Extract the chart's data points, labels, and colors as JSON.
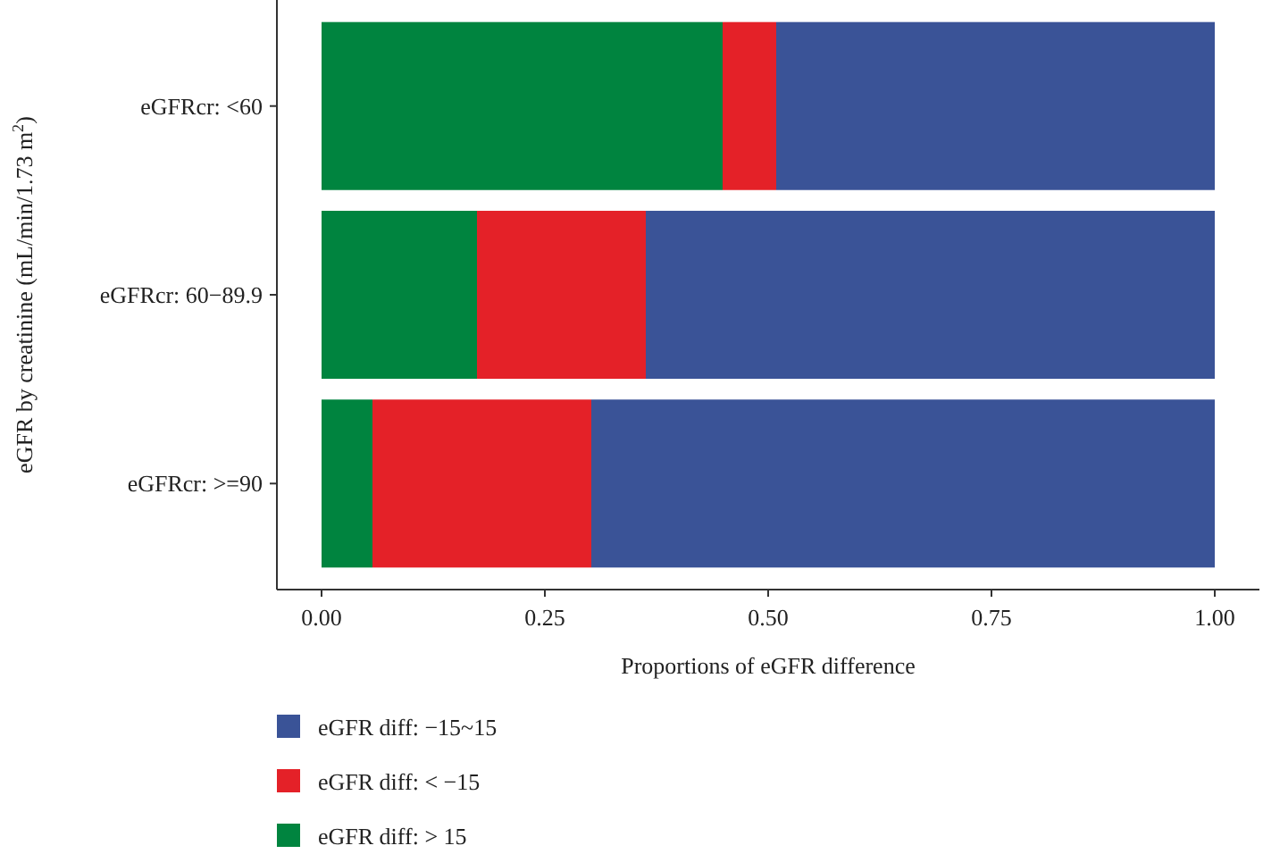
{
  "chart_data": {
    "type": "bar",
    "orientation": "horizontal",
    "stacked": true,
    "categories": [
      "eGFRcr: <60",
      "eGFRcr: 60−89.9",
      "eGFRcr: >=90"
    ],
    "series": [
      {
        "name": "eGFR diff: > 15",
        "color": "#00843f",
        "values": [
          0.449,
          0.174,
          0.057
        ]
      },
      {
        "name": "eGFR diff: < −15",
        "color": "#e42128",
        "values": [
          0.06,
          0.189,
          0.245
        ]
      },
      {
        "name": "eGFR diff: −15~15",
        "color": "#3a5397",
        "values": [
          0.491,
          0.637,
          0.698
        ]
      }
    ],
    "xlim": [
      -0.05,
      1.05
    ],
    "xticks": [
      {
        "value": 0,
        "label": "0.00"
      },
      {
        "value": 0.25,
        "label": "0.25"
      },
      {
        "value": 0.5,
        "label": "0.50"
      },
      {
        "value": 0.75,
        "label": "0.75"
      },
      {
        "value": 1,
        "label": "1.00"
      }
    ],
    "xlabel": "Proportions of eGFR difference",
    "ylabel": "eGFR by creatinine (mL/min/1.73 m$^{2}$)",
    "grid": false,
    "legend": "bottom left"
  }
}
